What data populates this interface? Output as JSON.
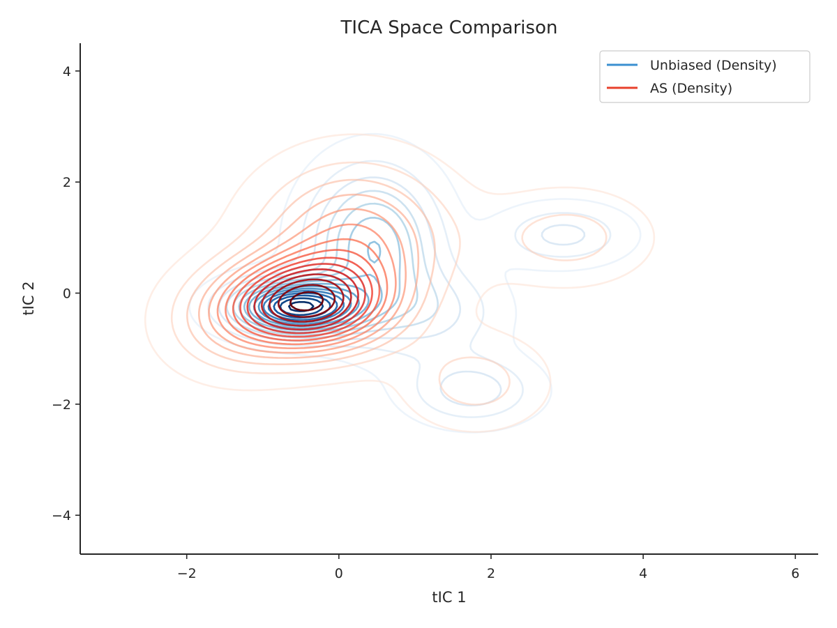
{
  "chart_data": {
    "type": "contour",
    "title": "TICA Space Comparison",
    "xlabel": "tIC 1",
    "ylabel": "tIC 2",
    "xlim": [
      -3.4,
      6.3
    ],
    "ylim": [
      -4.7,
      4.5
    ],
    "xticks": [
      -2,
      0,
      2,
      4,
      6
    ],
    "yticks": [
      -4,
      -2,
      0,
      2,
      4
    ],
    "grid": false,
    "legend_position": "top-right",
    "colors": {
      "axis": "#262626",
      "unbiased_legend": "#3a8fd0",
      "as_legend": "#e8412c"
    },
    "series": [
      {
        "name": "Unbiased (Density)",
        "colormap": "Blues",
        "levels": 15,
        "components": [
          {
            "center": [
              -0.55,
              -0.25
            ],
            "spread": [
              0.55,
              0.32
            ],
            "weight": 1.0
          },
          {
            "center": [
              0.45,
              0.85
            ],
            "spread": [
              0.55,
              0.9
            ],
            "weight": 0.45
          },
          {
            "center": [
              2.95,
              1.05
            ],
            "spread": [
              0.55,
              0.35
            ],
            "weight": 0.2
          },
          {
            "center": [
              1.75,
              -1.75
            ],
            "spread": [
              0.55,
              0.4
            ],
            "weight": 0.22
          },
          {
            "center": [
              1.25,
              -0.35
            ],
            "spread": [
              0.6,
              0.55
            ],
            "weight": 0.18
          }
        ]
      },
      {
        "name": "AS (Density)",
        "colormap": "Reds",
        "levels": 15,
        "components": [
          {
            "center": [
              -0.45,
              -0.2
            ],
            "spread": [
              0.7,
              0.55
            ],
            "weight": 1.0
          },
          {
            "center": [
              0.2,
              0.9
            ],
            "spread": [
              0.8,
              0.9
            ],
            "weight": 0.45
          },
          {
            "center": [
              3.0,
              1.0
            ],
            "spread": [
              0.7,
              0.55
            ],
            "weight": 0.16
          },
          {
            "center": [
              1.8,
              -1.6
            ],
            "spread": [
              0.6,
              0.55
            ],
            "weight": 0.16
          },
          {
            "center": [
              -1.4,
              -0.6
            ],
            "spread": [
              0.6,
              0.6
            ],
            "weight": 0.2
          }
        ]
      }
    ]
  }
}
